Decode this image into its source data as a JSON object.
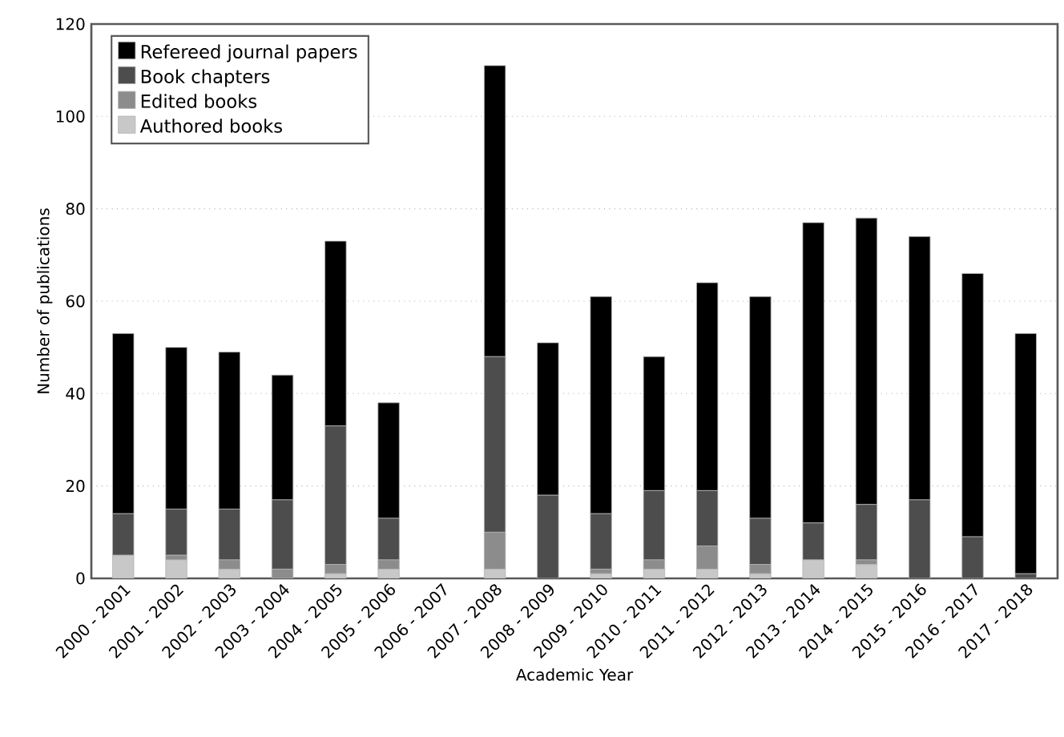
{
  "chart_data": {
    "type": "bar",
    "stacked": true,
    "xlabel": "Academic Year",
    "ylabel": "Number of publications",
    "categories": [
      "2000 - 2001",
      "2001 - 2002",
      "2002 - 2003",
      "2003 - 2004",
      "2004 - 2005",
      "2005 - 2006",
      "2006 - 2007",
      "2007 - 2008",
      "2008 - 2009",
      "2009 - 2010",
      "2010 - 2011",
      "2011 - 2012",
      "2012 - 2013",
      "2013 - 2014",
      "2014 - 2015",
      "2015 - 2016",
      "2016 - 2017",
      "2017 - 2018"
    ],
    "series": [
      {
        "name": "Authored books",
        "color": "#c8c8c8",
        "values": [
          5,
          4,
          2,
          0,
          1,
          2,
          0,
          2,
          0,
          1,
          2,
          2,
          1,
          4,
          3,
          0,
          0,
          0
        ]
      },
      {
        "name": "Edited books",
        "color": "#8c8c8c",
        "values": [
          0,
          1,
          2,
          2,
          2,
          2,
          0,
          8,
          0,
          1,
          2,
          5,
          2,
          0,
          1,
          0,
          0,
          0
        ]
      },
      {
        "name": "Book chapters",
        "color": "#4d4d4d",
        "values": [
          9,
          10,
          11,
          15,
          30,
          9,
          0,
          38,
          18,
          12,
          15,
          12,
          10,
          8,
          12,
          17,
          9,
          1
        ]
      },
      {
        "name": "Refereed journal papers",
        "color": "#000000",
        "values": [
          39,
          35,
          34,
          27,
          40,
          25,
          0,
          63,
          33,
          47,
          29,
          45,
          48,
          65,
          62,
          57,
          57,
          52
        ]
      }
    ],
    "ylim": [
      0,
      120
    ],
    "yticks": [
      0,
      20,
      40,
      60,
      80,
      100,
      120
    ],
    "grid": "y",
    "legend": "top left"
  }
}
